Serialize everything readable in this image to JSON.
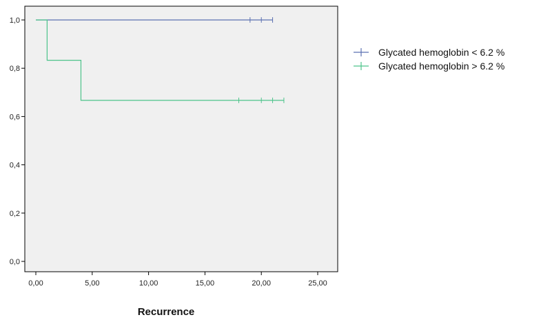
{
  "chart_data": {
    "type": "line",
    "subtype": "kaplan-meier",
    "title": "",
    "xlabel": "Recurrence",
    "ylabel": "",
    "xlim": [
      0,
      25
    ],
    "ylim": [
      0,
      1
    ],
    "x_ticks": [
      0,
      5,
      10,
      15,
      20,
      25
    ],
    "x_tick_labels": [
      "0,00",
      "5,00",
      "10,00",
      "15,00",
      "20,00",
      "25,00"
    ],
    "y_ticks": [
      0,
      0.2,
      0.4,
      0.6,
      0.8,
      1.0
    ],
    "y_tick_labels": [
      "0,0",
      "0,2",
      "0,4",
      "0,6",
      "0,8",
      "1,0"
    ],
    "grid": false,
    "legend_position": "right",
    "plot_background": "#f0f0f0",
    "series": [
      {
        "name": "Glycated hemoglobin < 6.2 %",
        "color": "#5a6fb0",
        "steps": [
          [
            0,
            1.0
          ],
          [
            21,
            1.0
          ]
        ],
        "censored": [
          [
            19,
            1.0
          ],
          [
            20,
            1.0
          ],
          [
            21,
            1.0
          ]
        ]
      },
      {
        "name": "Glycated hemoglobin > 6.2 %",
        "color": "#4cc38a",
        "steps": [
          [
            0,
            1.0
          ],
          [
            1,
            0.833
          ],
          [
            4,
            0.667
          ],
          [
            22,
            0.667
          ]
        ],
        "censored": [
          [
            18,
            0.667
          ],
          [
            20,
            0.667
          ],
          [
            21,
            0.667
          ],
          [
            22,
            0.667
          ]
        ]
      }
    ]
  }
}
